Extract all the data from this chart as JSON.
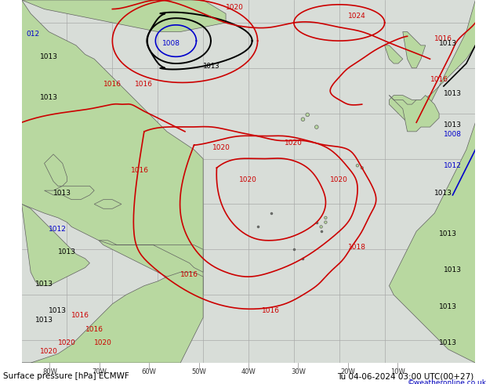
{
  "title": "Surface pressure [hPa] ECMWF",
  "date_label": "Tu 04-06-2024 03:00 UTC(00+27)",
  "copyright": "©weatheronline.co.uk",
  "bg_color": "#d0d8d0",
  "land_color": "#b8d8a0",
  "ocean_color": "#d8ddd8",
  "grid_color": "#aaaaaa",
  "contour_color_red": "#cc0000",
  "contour_color_black": "#000000",
  "contour_color_blue": "#0000cc",
  "bottom_bar_color": "#c8c8c8",
  "figsize": [
    6.34,
    4.9
  ],
  "dpi": 100,
  "lon_min": -90,
  "lon_max": 10,
  "lat_min": -15,
  "lat_max": 65,
  "grid_lons": [
    -80,
    -70,
    -60,
    -50,
    -40,
    -30,
    -20,
    -10
  ],
  "grid_lats": [
    -10,
    0,
    10,
    20,
    30,
    40,
    50,
    60
  ],
  "tick_labels": [
    "80W",
    "70W",
    "60W",
    "50W",
    "40W",
    "30W",
    "20W",
    "10W"
  ]
}
